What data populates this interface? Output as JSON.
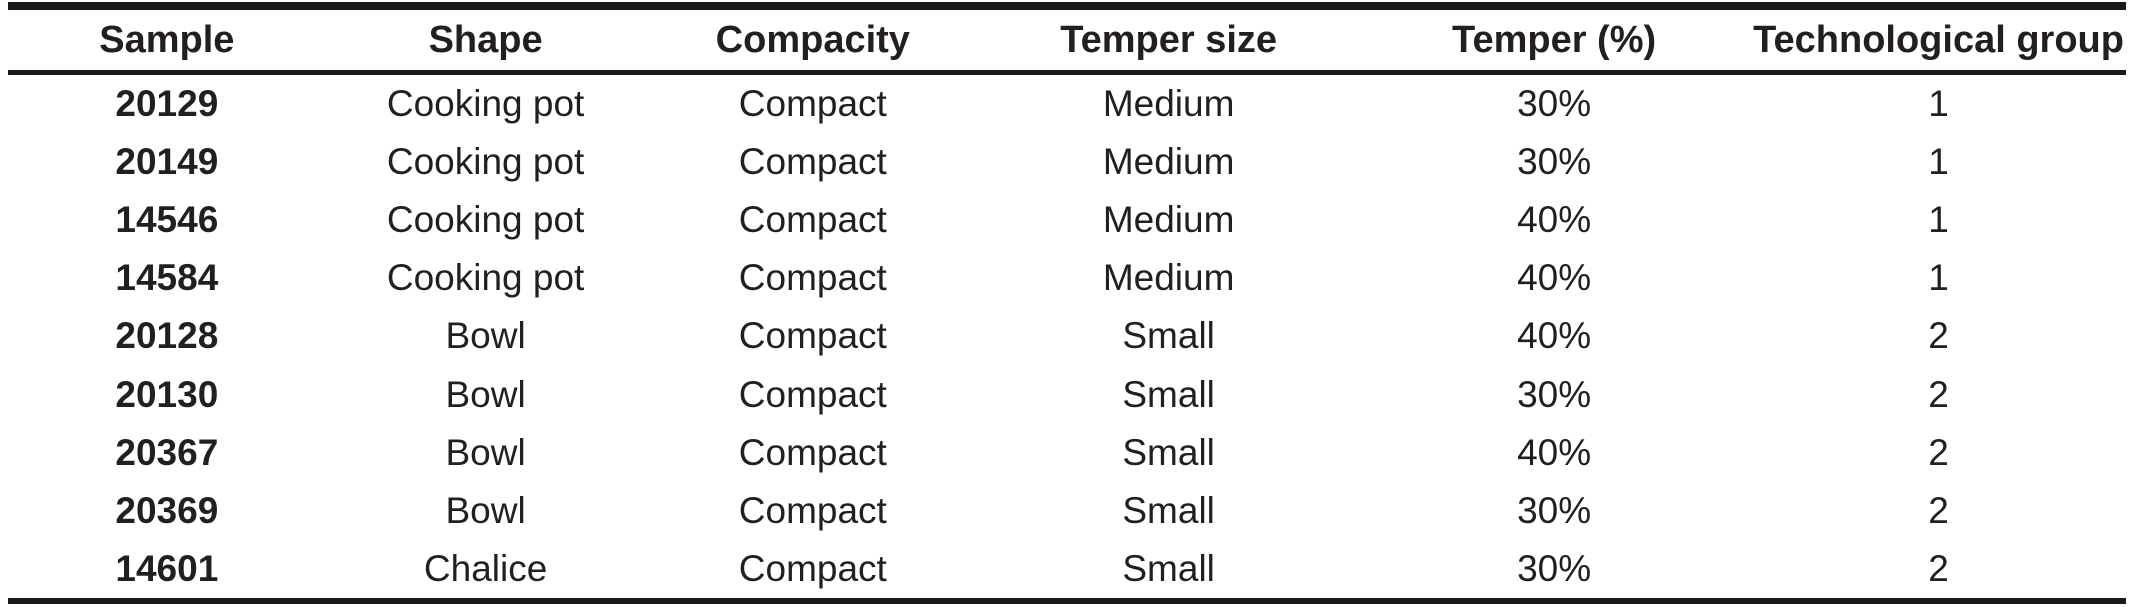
{
  "table": {
    "columns": [
      "Sample",
      "Shape",
      "Compacity",
      "Temper size",
      "Temper (%)",
      "Technological group"
    ],
    "rows": [
      {
        "sample": "20129",
        "shape": "Cooking pot",
        "compacity": "Compact",
        "temper_size": "Medium",
        "temper_pct": "30%",
        "tech_group": "1"
      },
      {
        "sample": "20149",
        "shape": "Cooking pot",
        "compacity": "Compact",
        "temper_size": "Medium",
        "temper_pct": "30%",
        "tech_group": "1"
      },
      {
        "sample": "14546",
        "shape": "Cooking pot",
        "compacity": "Compact",
        "temper_size": "Medium",
        "temper_pct": "40%",
        "tech_group": "1"
      },
      {
        "sample": "14584",
        "shape": "Cooking pot",
        "compacity": "Compact",
        "temper_size": "Medium",
        "temper_pct": "40%",
        "tech_group": "1"
      },
      {
        "sample": "20128",
        "shape": "Bowl",
        "compacity": "Compact",
        "temper_size": "Small",
        "temper_pct": "40%",
        "tech_group": "2"
      },
      {
        "sample": "20130",
        "shape": "Bowl",
        "compacity": "Compact",
        "temper_size": "Small",
        "temper_pct": "30%",
        "tech_group": "2"
      },
      {
        "sample": "20367",
        "shape": "Bowl",
        "compacity": "Compact",
        "temper_size": "Small",
        "temper_pct": "40%",
        "tech_group": "2"
      },
      {
        "sample": "20369",
        "shape": "Bowl",
        "compacity": "Compact",
        "temper_size": "Small",
        "temper_pct": "30%",
        "tech_group": "2"
      },
      {
        "sample": "14601",
        "shape": "Chalice",
        "compacity": "Compact",
        "temper_size": "Small",
        "temper_pct": "30%",
        "tech_group": "2"
      }
    ]
  },
  "colors": {
    "text": "#231f20",
    "rule": "#1a1a1a",
    "background": "#ffffff"
  }
}
